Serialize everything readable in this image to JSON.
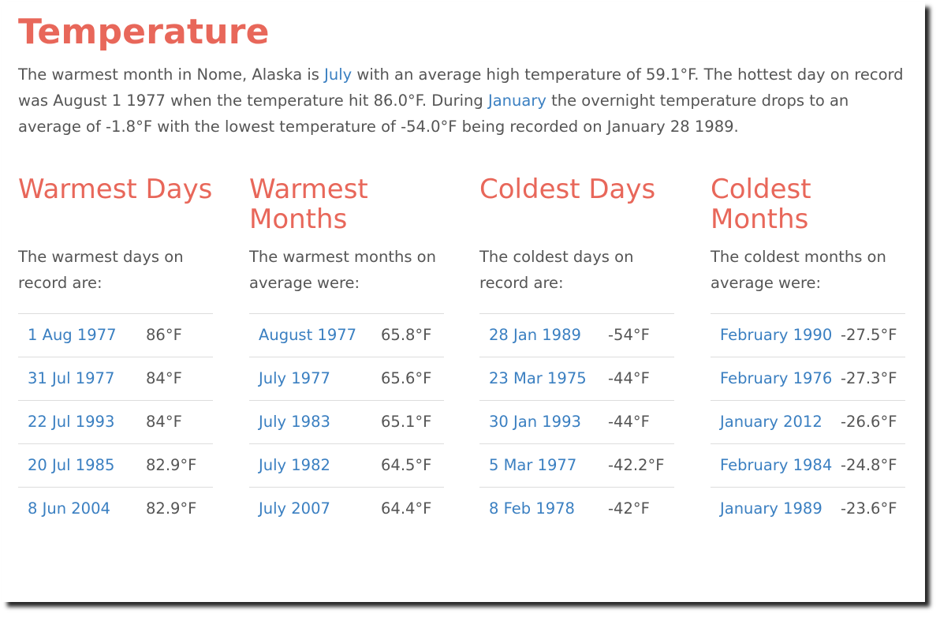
{
  "section": {
    "title": "Temperature",
    "intro": {
      "p1": "The warmest month in Nome, Alaska is ",
      "link1": "July",
      "p2": " with an average high temperature of 59.1°F. The hottest day on record was August 1 1977 when the temperature hit 86.0°F. During ",
      "link2": "January",
      "p3": " the overnight temperature drops to an average of -1.8°F with the lowest temperature of -54.0°F being recorded on January 28 1989."
    }
  },
  "warmest_days": {
    "title": "Warmest Days",
    "desc": "The warmest days on record are:",
    "rows": [
      {
        "date": "1 Aug 1977",
        "temp": "86°F"
      },
      {
        "date": "31 Jul 1977",
        "temp": "84°F"
      },
      {
        "date": "22 Jul 1993",
        "temp": "84°F"
      },
      {
        "date": "20 Jul 1985",
        "temp": "82.9°F"
      },
      {
        "date": "8 Jun 2004",
        "temp": "82.9°F"
      }
    ]
  },
  "warmest_months": {
    "title": "Warmest Months",
    "desc": "The warmest months on average were:",
    "rows": [
      {
        "date": "August 1977",
        "temp": "65.8°F"
      },
      {
        "date": "July 1977",
        "temp": "65.6°F"
      },
      {
        "date": "July 1983",
        "temp": "65.1°F"
      },
      {
        "date": "July 1982",
        "temp": "64.5°F"
      },
      {
        "date": "July 2007",
        "temp": "64.4°F"
      }
    ]
  },
  "coldest_days": {
    "title": "Coldest Days",
    "desc": "The coldest days on record are:",
    "rows": [
      {
        "date": "28 Jan 1989",
        "temp": "-54°F"
      },
      {
        "date": "23 Mar 1975",
        "temp": "-44°F"
      },
      {
        "date": "30 Jan 1993",
        "temp": "-44°F"
      },
      {
        "date": "5 Mar 1977",
        "temp": "-42.2°F"
      },
      {
        "date": "8 Feb 1978",
        "temp": "-42°F"
      }
    ]
  },
  "coldest_months": {
    "title": "Coldest Months",
    "desc": "The coldest months on average were:",
    "rows": [
      {
        "date": "February 1990",
        "temp": "-27.5°F"
      },
      {
        "date": "February 1976",
        "temp": "-27.3°F"
      },
      {
        "date": "January 2012",
        "temp": "-26.6°F"
      },
      {
        "date": "February 1984",
        "temp": "-24.8°F"
      },
      {
        "date": "January 1989",
        "temp": "-23.6°F"
      }
    ]
  },
  "colors": {
    "heading": "#e8675a",
    "link": "#3a7fc1",
    "text": "#555555",
    "divider": "#dddddd"
  }
}
